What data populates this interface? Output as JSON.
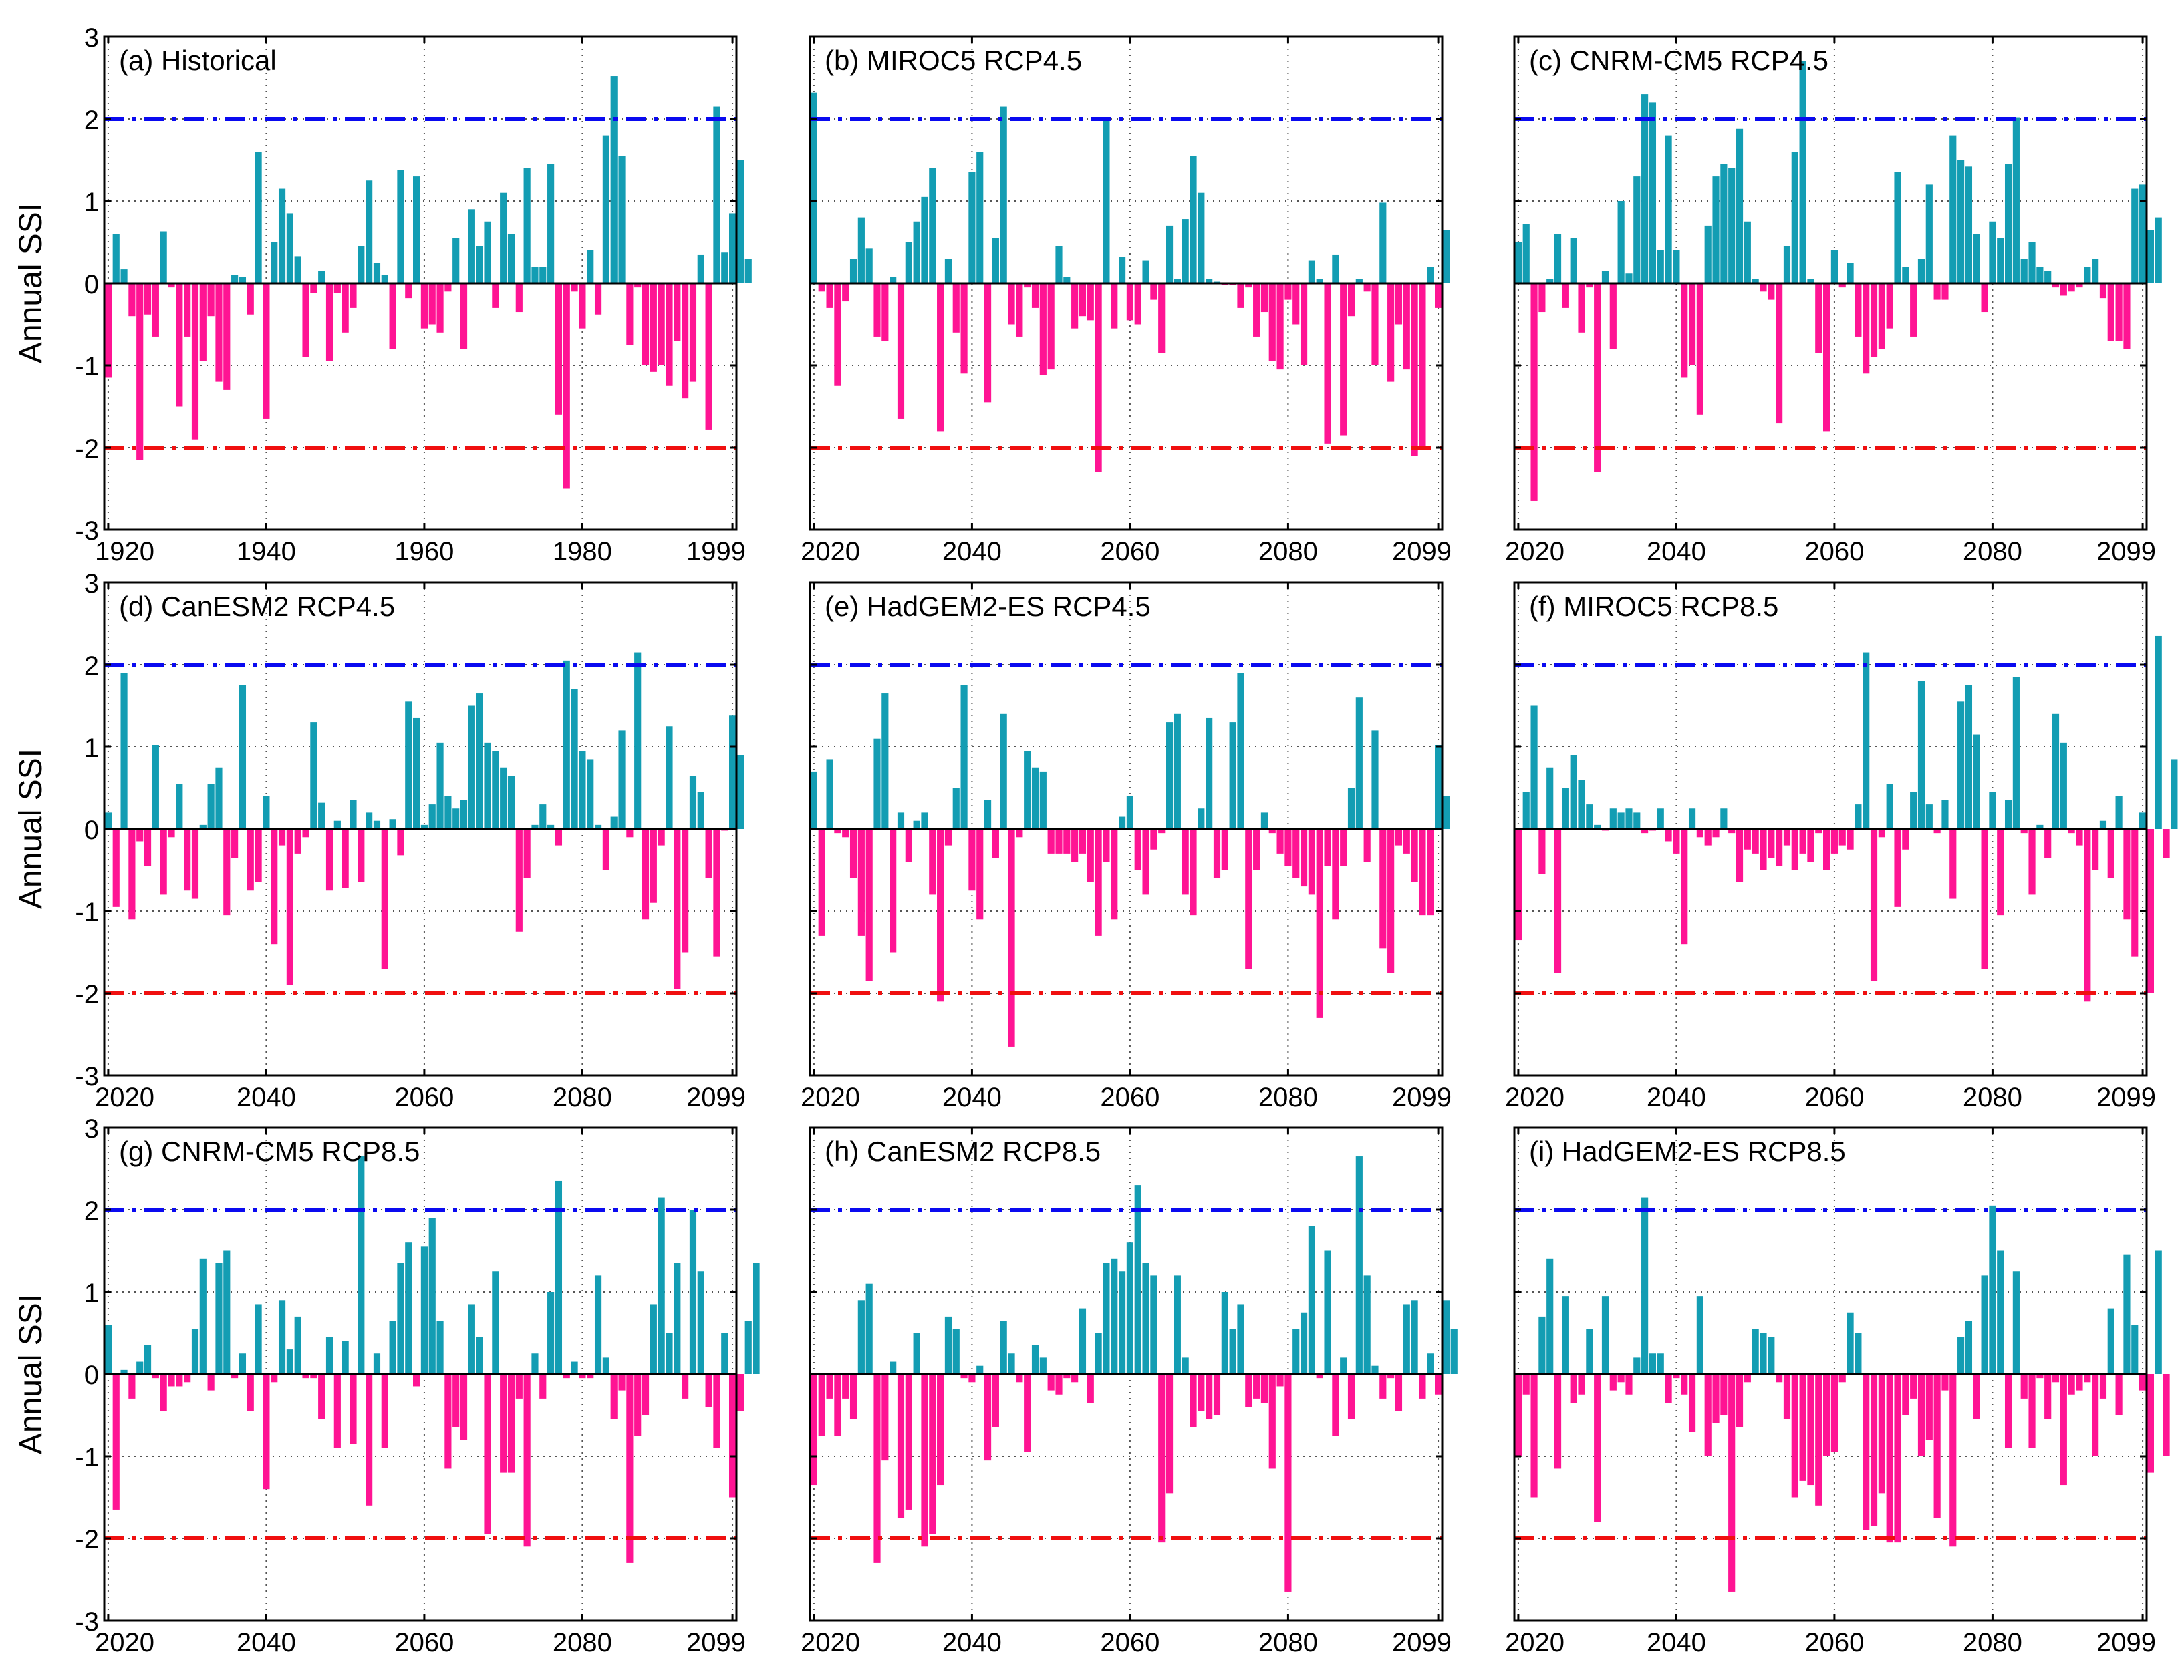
{
  "figure": {
    "ylabel": "Annual SSI",
    "ylim": [
      -3,
      3
    ],
    "yticks": [
      -3,
      -2,
      -1,
      0,
      1,
      2,
      3
    ],
    "wet_threshold": 2,
    "dry_threshold": -2
  },
  "colors": {
    "positive_bar": "#139DB3",
    "negative_bar": "#FF1493",
    "wet_line": "#0A0AF0",
    "dry_line": "#F01010",
    "zero_line": "#000000",
    "grid": "#555555"
  },
  "chart_data": [
    {
      "type": "bar",
      "title": "(a) Historical",
      "xlim": [
        1920,
        1999
      ],
      "xticks": [
        1920,
        1940,
        1960,
        1980,
        1999
      ],
      "ylabel": "Annual SSI",
      "values": [
        -1.15,
        0.6,
        0.17,
        -0.4,
        -2.15,
        -0.38,
        -0.65,
        0.63,
        -0.05,
        -1.5,
        -0.65,
        -1.9,
        -0.95,
        -0.4,
        -1.2,
        -1.3,
        0.1,
        0.08,
        -0.38,
        1.6,
        -1.65,
        0.5,
        1.15,
        0.85,
        0.33,
        -0.9,
        -0.12,
        0.15,
        -0.95,
        -0.12,
        -0.6,
        -0.3,
        0.45,
        1.25,
        0.25,
        0.1,
        -0.8,
        1.38,
        -0.18,
        1.3,
        -0.55,
        -0.5,
        -0.6,
        -0.1,
        0.55,
        -0.8,
        0.9,
        0.45,
        0.75,
        -0.3,
        1.1,
        0.6,
        -0.35,
        1.4,
        0.2,
        0.2,
        1.45,
        -1.6,
        -2.5,
        -0.1,
        -0.55,
        0.4,
        -0.38,
        1.8,
        2.52,
        1.55,
        -0.75,
        -0.05,
        -1.0,
        -1.08,
        -1.0,
        -1.25,
        -0.7,
        -1.4,
        -1.2,
        0.35,
        -1.78,
        2.15,
        0.38,
        0.85,
        1.5,
        0.3
      ]
    },
    {
      "type": "bar",
      "title": "(b) MIROC5 RCP4.5",
      "xlim": [
        2020,
        2099
      ],
      "xticks": [
        2020,
        2040,
        2060,
        2080,
        2099
      ],
      "ylabel": "Annual SSI",
      "values": [
        2.32,
        -0.1,
        -0.3,
        -1.25,
        -0.22,
        0.3,
        0.8,
        0.42,
        -0.65,
        -0.7,
        0.08,
        -1.65,
        0.5,
        0.75,
        1.05,
        1.4,
        -1.8,
        0.3,
        -0.6,
        -1.1,
        1.35,
        1.6,
        -1.45,
        0.55,
        2.15,
        -0.5,
        -0.65,
        -0.05,
        -0.3,
        -1.12,
        -1.05,
        0.45,
        0.08,
        -0.55,
        -0.4,
        -0.45,
        -2.3,
        2.02,
        -0.55,
        0.32,
        -0.45,
        -0.5,
        0.28,
        -0.2,
        -0.85,
        0.7,
        0.05,
        0.78,
        1.55,
        1.1,
        0.05,
        0.02,
        -0.02,
        -0.02,
        -0.3,
        -0.05,
        -0.65,
        -0.35,
        -0.95,
        -1.05,
        -0.2,
        -0.5,
        -1.0,
        0.28,
        0.05,
        -1.95,
        0.35,
        -1.85,
        -0.4,
        0.05,
        -0.1,
        -1.0,
        0.98,
        -1.2,
        -0.5,
        -1.05,
        -2.1,
        -2.0,
        0.2,
        -0.3,
        0.65
      ]
    },
    {
      "type": "bar",
      "title": "(c) CNRM-CM5 RCP4.5",
      "xlim": [
        2020,
        2099
      ],
      "xticks": [
        2020,
        2040,
        2060,
        2080,
        2099
      ],
      "ylabel": "Annual SSI",
      "values": [
        0.5,
        0.72,
        -2.65,
        -0.35,
        0.05,
        0.6,
        -0.3,
        0.55,
        -0.6,
        -0.05,
        -2.3,
        0.15,
        -0.8,
        1.0,
        0.12,
        1.3,
        2.3,
        2.2,
        0.4,
        1.8,
        0.4,
        -1.15,
        -1.0,
        -1.6,
        0.7,
        1.3,
        1.45,
        1.4,
        1.88,
        0.75,
        0.05,
        -0.1,
        -0.2,
        -1.7,
        0.45,
        1.6,
        2.7,
        0.05,
        -0.85,
        -1.8,
        0.4,
        -0.05,
        0.25,
        -0.65,
        -1.1,
        -0.9,
        -0.8,
        -0.55,
        1.35,
        0.2,
        -0.65,
        0.3,
        1.2,
        -0.2,
        -0.2,
        1.8,
        1.5,
        1.42,
        0.6,
        -0.35,
        0.75,
        0.55,
        1.45,
        2.02,
        0.3,
        0.5,
        0.2,
        0.15,
        -0.05,
        -0.15,
        -0.1,
        -0.05,
        0.2,
        0.3,
        -0.18,
        -0.7,
        -0.7,
        -0.8,
        1.15,
        1.2,
        0.65,
        0.8
      ]
    },
    {
      "type": "bar",
      "title": "(d) CanESM2 RCP4.5",
      "xlim": [
        2020,
        2099
      ],
      "xticks": [
        2020,
        2040,
        2060,
        2080,
        2099
      ],
      "ylabel": "Annual SSI",
      "values": [
        0.2,
        -0.95,
        1.9,
        -1.1,
        -0.15,
        -0.45,
        1.02,
        -0.8,
        -0.1,
        0.55,
        -0.75,
        -0.85,
        0.05,
        0.55,
        0.75,
        -1.05,
        -0.35,
        1.75,
        -0.75,
        -0.65,
        0.4,
        -1.4,
        -0.2,
        -1.9,
        -0.3,
        -0.1,
        1.3,
        0.32,
        -0.75,
        0.1,
        -0.72,
        0.35,
        -0.65,
        0.2,
        0.1,
        -1.7,
        0.12,
        -0.32,
        1.55,
        1.35,
        0.05,
        0.3,
        1.05,
        0.4,
        0.25,
        0.35,
        1.5,
        1.65,
        1.05,
        0.95,
        0.75,
        0.65,
        -1.25,
        -0.6,
        0.05,
        0.3,
        0.05,
        -0.2,
        2.05,
        1.7,
        0.95,
        0.85,
        0.05,
        -0.5,
        0.15,
        1.2,
        -0.1,
        2.15,
        -1.1,
        -0.9,
        -0.2,
        1.25,
        -1.95,
        -1.5,
        0.65,
        0.45,
        -0.6,
        -1.55,
        -0.02,
        1.38,
        0.9
      ]
    },
    {
      "type": "bar",
      "title": "(e) HadGEM2-ES RCP4.5",
      "xlim": [
        2020,
        2099
      ],
      "xticks": [
        2020,
        2040,
        2060,
        2080,
        2099
      ],
      "ylabel": "Annual SSI",
      "values": [
        0.7,
        -1.3,
        0.85,
        -0.05,
        -0.1,
        -0.6,
        -1.3,
        -1.85,
        1.1,
        1.65,
        -1.5,
        0.2,
        -0.4,
        0.1,
        0.2,
        -0.8,
        -2.1,
        -0.2,
        0.5,
        1.75,
        -0.75,
        -1.1,
        0.35,
        -0.35,
        1.4,
        -2.65,
        -0.1,
        0.95,
        0.75,
        0.7,
        -0.3,
        -0.3,
        -0.3,
        -0.4,
        -0.3,
        -0.65,
        -1.3,
        -0.4,
        -1.1,
        0.15,
        0.4,
        -0.5,
        -0.8,
        -0.25,
        -0.05,
        1.3,
        1.4,
        -0.8,
        -1.05,
        0.25,
        1.35,
        -0.6,
        -0.5,
        1.3,
        1.9,
        -1.7,
        -0.5,
        0.2,
        -0.05,
        -0.3,
        -0.45,
        -0.6,
        -0.7,
        -0.8,
        -2.3,
        -0.45,
        -1.1,
        -0.45,
        0.5,
        1.6,
        -0.4,
        1.2,
        -1.45,
        -1.75,
        -0.2,
        -0.3,
        -0.65,
        -1.05,
        -1.05,
        1.02,
        0.4
      ]
    },
    {
      "type": "bar",
      "title": "(f) MIROC5 RCP8.5",
      "xlim": [
        2020,
        2099
      ],
      "xticks": [
        2020,
        2040,
        2060,
        2080,
        2099
      ],
      "ylabel": "Annual SSI",
      "values": [
        -1.35,
        0.45,
        1.5,
        -0.55,
        0.75,
        -1.75,
        0.5,
        0.9,
        0.6,
        0.3,
        0.05,
        -0.02,
        0.25,
        0.2,
        0.25,
        0.2,
        -0.05,
        -0.02,
        0.25,
        -0.15,
        -0.3,
        -1.4,
        0.25,
        -0.1,
        -0.2,
        -0.1,
        0.25,
        -0.05,
        -0.65,
        -0.25,
        -0.3,
        -0.5,
        -0.35,
        -0.45,
        -0.2,
        -0.5,
        -0.3,
        -0.4,
        -0.05,
        -0.5,
        -0.3,
        -0.2,
        -0.25,
        0.3,
        2.15,
        -1.85,
        -0.1,
        0.55,
        -0.95,
        -0.25,
        0.45,
        1.8,
        0.3,
        -0.05,
        0.35,
        -0.85,
        1.55,
        1.75,
        1.15,
        -1.7,
        0.45,
        -1.05,
        0.35,
        1.85,
        -0.05,
        -0.8,
        0.05,
        -0.35,
        1.4,
        1.05,
        -0.05,
        -0.2,
        -2.1,
        -0.5,
        0.1,
        -0.6,
        0.4,
        -1.1,
        -1.55,
        0.2,
        -2.0,
        2.35,
        -0.35,
        0.85
      ]
    },
    {
      "type": "bar",
      "title": "(g) CNRM-CM5 RCP8.5",
      "xlim": [
        2020,
        2099
      ],
      "xticks": [
        2020,
        2040,
        2060,
        2080,
        2099
      ],
      "ylabel": "Annual SSI",
      "values": [
        0.6,
        -1.65,
        0.05,
        -0.3,
        0.15,
        0.35,
        -0.05,
        -0.45,
        -0.15,
        -0.15,
        -0.1,
        0.55,
        1.4,
        -0.2,
        1.35,
        1.5,
        -0.05,
        0.25,
        -0.45,
        0.85,
        -1.4,
        -0.1,
        0.9,
        0.3,
        0.7,
        -0.05,
        -0.05,
        -0.55,
        0.45,
        -0.9,
        0.4,
        -0.85,
        2.65,
        -1.6,
        0.25,
        -0.9,
        0.65,
        1.35,
        1.6,
        -0.15,
        1.55,
        1.9,
        0.65,
        -1.15,
        -0.65,
        -0.8,
        0.85,
        0.45,
        -1.95,
        1.25,
        -1.2,
        -1.2,
        -0.3,
        -2.1,
        0.25,
        -0.3,
        1.0,
        2.35,
        -0.05,
        0.15,
        -0.05,
        -0.05,
        1.2,
        0.2,
        -0.55,
        -0.2,
        -2.3,
        -0.75,
        -0.5,
        0.85,
        2.15,
        0.5,
        1.35,
        -0.3,
        2.0,
        1.25,
        -0.4,
        -0.9,
        0.5,
        -1.5,
        -0.45,
        0.65,
        1.35
      ]
    },
    {
      "type": "bar",
      "title": "(h) CanESM2 RCP8.5",
      "xlim": [
        2020,
        2099
      ],
      "xticks": [
        2020,
        2040,
        2060,
        2080,
        2099
      ],
      "ylabel": "Annual SSI",
      "values": [
        -1.35,
        -0.75,
        -0.3,
        -0.75,
        -0.3,
        -0.55,
        0.9,
        1.1,
        -2.3,
        -1.05,
        0.15,
        -1.75,
        -1.65,
        0.5,
        -2.1,
        -1.95,
        -1.35,
        0.7,
        0.55,
        -0.05,
        -0.1,
        0.1,
        -1.05,
        -0.65,
        0.65,
        0.25,
        -0.1,
        -0.95,
        0.35,
        0.2,
        -0.2,
        -0.25,
        -0.05,
        -0.1,
        0.8,
        -0.35,
        0.5,
        1.35,
        1.4,
        1.25,
        1.6,
        2.3,
        1.35,
        1.2,
        -2.05,
        -1.45,
        1.2,
        0.2,
        -0.65,
        -0.45,
        -0.55,
        -0.5,
        1.0,
        0.55,
        0.85,
        -0.4,
        -0.3,
        -0.35,
        -1.15,
        -0.15,
        -2.65,
        0.55,
        0.75,
        1.8,
        -0.05,
        1.5,
        -0.75,
        0.2,
        -0.55,
        2.65,
        1.2,
        0.1,
        -0.3,
        -0.05,
        -0.45,
        0.85,
        0.9,
        -0.3,
        0.25,
        -0.25,
        0.9,
        0.55
      ]
    },
    {
      "type": "bar",
      "title": "(i) HadGEM2-ES RCP8.5",
      "xlim": [
        2020,
        2099
      ],
      "xticks": [
        2020,
        2040,
        2060,
        2080,
        2099
      ],
      "ylabel": "Annual SSI",
      "values": [
        -1.0,
        -0.25,
        -1.5,
        0.7,
        1.4,
        -1.15,
        0.95,
        -0.35,
        -0.25,
        0.55,
        -1.8,
        0.95,
        -0.2,
        -0.1,
        -0.25,
        0.2,
        2.15,
        0.25,
        0.25,
        -0.35,
        -0.05,
        -0.25,
        -0.7,
        0.95,
        -1.0,
        -0.6,
        -0.5,
        -2.65,
        -0.65,
        -0.1,
        0.55,
        0.5,
        0.45,
        -0.1,
        -0.55,
        -1.5,
        -1.3,
        -1.35,
        -1.6,
        -1.0,
        -0.95,
        -0.1,
        0.75,
        0.5,
        -1.9,
        -1.85,
        -1.45,
        -2.05,
        -2.05,
        -0.5,
        -0.3,
        -1.0,
        -0.8,
        -1.75,
        -0.2,
        -2.1,
        0.45,
        0.65,
        -0.55,
        1.2,
        2.05,
        1.5,
        -0.9,
        1.25,
        -0.3,
        -0.9,
        -0.05,
        -0.55,
        -0.1,
        -1.35,
        -0.25,
        -0.2,
        -0.1,
        -1.0,
        -0.3,
        0.8,
        -0.5,
        1.45,
        0.6,
        -0.2,
        -1.2,
        1.5,
        -1.0
      ]
    }
  ]
}
